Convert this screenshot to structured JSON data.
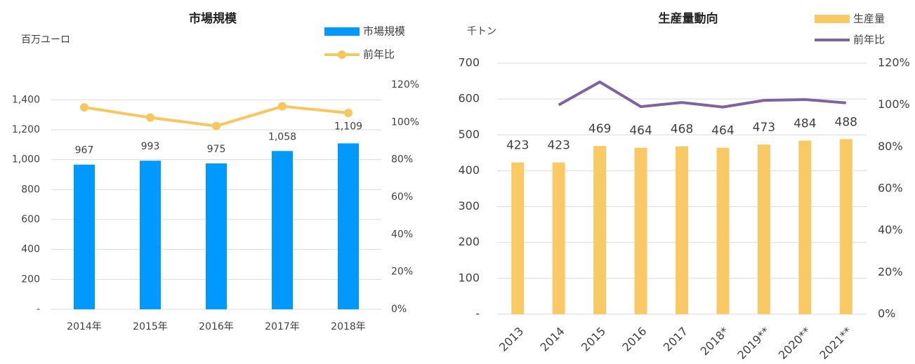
{
  "chart_data": [
    {
      "type": "bar",
      "title": "市場規模",
      "y_label": "百万ユーロ",
      "categories": [
        "2014年",
        "2015年",
        "2016年",
        "2017年",
        "2018年"
      ],
      "series": [
        {
          "name": "市場規模",
          "color": "#0099ff",
          "values": [
            967,
            993,
            975,
            1058,
            1109
          ],
          "value_labels": [
            "967",
            "993",
            "975",
            "1,058",
            "1,109"
          ]
        },
        {
          "name": "前年比",
          "color": "#f7c65f",
          "type": "line",
          "axis": "y2",
          "marker": true,
          "values": [
            108,
            102.5,
            98,
            108.5,
            105
          ]
        }
      ],
      "ylim": [
        0,
        1500
      ],
      "yticks": [
        {
          "value": 0,
          "label": "-"
        },
        200,
        400,
        600,
        800,
        {
          "value": 1000,
          "label": "1,000"
        },
        {
          "value": 1200,
          "label": "1,200"
        },
        {
          "value": 1400,
          "label": "1,400"
        }
      ],
      "y2lim": [
        0,
        120
      ],
      "y2ticks": [
        {
          "value": 0,
          "label": "0%"
        },
        {
          "value": 20,
          "label": "20%"
        },
        {
          "value": 40,
          "label": "40%"
        },
        {
          "value": 60,
          "label": "60%"
        },
        {
          "value": 80,
          "label": "80%"
        },
        {
          "value": 100,
          "label": "100%"
        },
        {
          "value": 120,
          "label": "120%"
        }
      ],
      "grid": true,
      "legend": "upper right"
    },
    {
      "type": "bar",
      "title": "生産量動向",
      "y_label": "千トン",
      "categories": [
        "2013",
        "2014",
        "2015",
        "2016",
        "2017",
        "2018*",
        "2019**",
        "2020**",
        "2021**"
      ],
      "series": [
        {
          "name": "生産量",
          "color": "#f9c966",
          "values": [
            423,
            423,
            469,
            464,
            468,
            464,
            473,
            484,
            488
          ]
        },
        {
          "name": "前年比",
          "color": "#7f62a0",
          "type": "line",
          "axis": "y2",
          "values": [
            null,
            100,
            111,
            99.2,
            101.2,
            99,
            102.2,
            102.6,
            101
          ]
        }
      ],
      "ylim": [
        0,
        700
      ],
      "yticks": [
        {
          "value": 0,
          "label": "-"
        },
        100,
        200,
        300,
        400,
        500,
        600,
        700
      ],
      "y2lim": [
        0,
        120
      ],
      "y2ticks": [
        {
          "value": 0,
          "label": "0%"
        },
        {
          "value": 20,
          "label": "20%"
        },
        {
          "value": 40,
          "label": "40%"
        },
        {
          "value": 60,
          "label": "60%"
        },
        {
          "value": 80,
          "label": "80%"
        },
        {
          "value": 100,
          "label": "100%"
        },
        {
          "value": 120,
          "label": "120%"
        }
      ],
      "grid": true,
      "legend": "upper right"
    }
  ]
}
